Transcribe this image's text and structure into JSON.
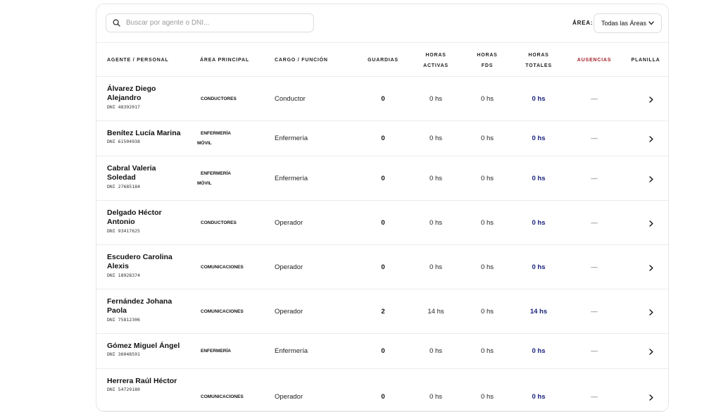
{
  "search": {
    "placeholder": "Buscar por agente o DNI..."
  },
  "filter": {
    "label": "ÁREA:",
    "value": "Todas las Áreas"
  },
  "columns": {
    "agente": "AGENTE / PERSONAL",
    "area": "ÁREA PRINCIPAL",
    "cargo": "CARGO / FUNCIÓN",
    "guardias": "GUARDIAS",
    "horas_activas_1": "HORAS",
    "horas_activas_2": "ACTIVAS",
    "horas_fds_1": "HORAS",
    "horas_fds_2": "FDS",
    "horas_totales_1": "HORAS",
    "horas_totales_2": "TOTALES",
    "ausencias": "AUSENCIAS",
    "planilla": "PLANILLA"
  },
  "colors": {
    "ausencias_header": "#a4202a",
    "total_hours": "#1a237e"
  },
  "rows": [
    {
      "name1": "Álvarez Diego",
      "name2": "Alejandro",
      "dni": "DNI 48392017",
      "area1": "CONDUCTORES",
      "area2": "",
      "cargo": "Conductor",
      "guardias": "0",
      "activas": "0 hs",
      "fds": "0 hs",
      "totales": "0 hs",
      "ausencias": "—"
    },
    {
      "name1": "Benítez Lucía Marina",
      "name2": "",
      "dni": "DNI 61504938",
      "area1": "ENFERMERÍA",
      "area2": "MÓVIL",
      "cargo": "Enfermería",
      "guardias": "0",
      "activas": "0 hs",
      "fds": "0 hs",
      "totales": "0 hs",
      "ausencias": "—"
    },
    {
      "name1": "Cabral Valeria",
      "name2": "Soledad",
      "dni": "DNI 27685184",
      "area1": "ENFERMERÍA",
      "area2": "MÓVIL",
      "cargo": "Enfermería",
      "guardias": "0",
      "activas": "0 hs",
      "fds": "0 hs",
      "totales": "0 hs",
      "ausencias": "—"
    },
    {
      "name1": "Delgado Héctor",
      "name2": "Antonio",
      "dni": "DNI 93417625",
      "area1": "CONDUCTORES",
      "area2": "",
      "cargo": "Operador",
      "guardias": "0",
      "activas": "0 hs",
      "fds": "0 hs",
      "totales": "0 hs",
      "ausencias": "—"
    },
    {
      "name1": "Escudero Carolina",
      "name2": "Alexis",
      "dni": "DNI 18928374",
      "area1": "COMUNICACIONES",
      "area2": "",
      "cargo": "Operador",
      "guardias": "0",
      "activas": "0 hs",
      "fds": "0 hs",
      "totales": "0 hs",
      "ausencias": "—"
    },
    {
      "name1": "Fernández Johana",
      "name2": "Paola",
      "dni": "DNI 75812306",
      "area1": "COMUNICACIONES",
      "area2": "",
      "cargo": "Operador",
      "guardias": "2",
      "activas": "14 hs",
      "fds": "0 hs",
      "totales": "14 hs",
      "ausencias": "—"
    },
    {
      "name1": "Gómez Miguel Ángel",
      "name2": "",
      "dni": "DNI 36048591",
      "area1": "ENFERMERÍA",
      "area2": "",
      "cargo": "Enfermería",
      "guardias": "0",
      "activas": "0 hs",
      "fds": "0 hs",
      "totales": "0 hs",
      "ausencias": "—"
    },
    {
      "name1": "Herrera Raúl Héctor",
      "name2": "",
      "dni": "DNI 54729180",
      "area1": "COMUNICACIONES",
      "area2": "",
      "cargo": "Operador",
      "guardias": "0",
      "activas": "0 hs",
      "fds": "0 hs",
      "totales": "0 hs",
      "ausencias": "—"
    }
  ]
}
